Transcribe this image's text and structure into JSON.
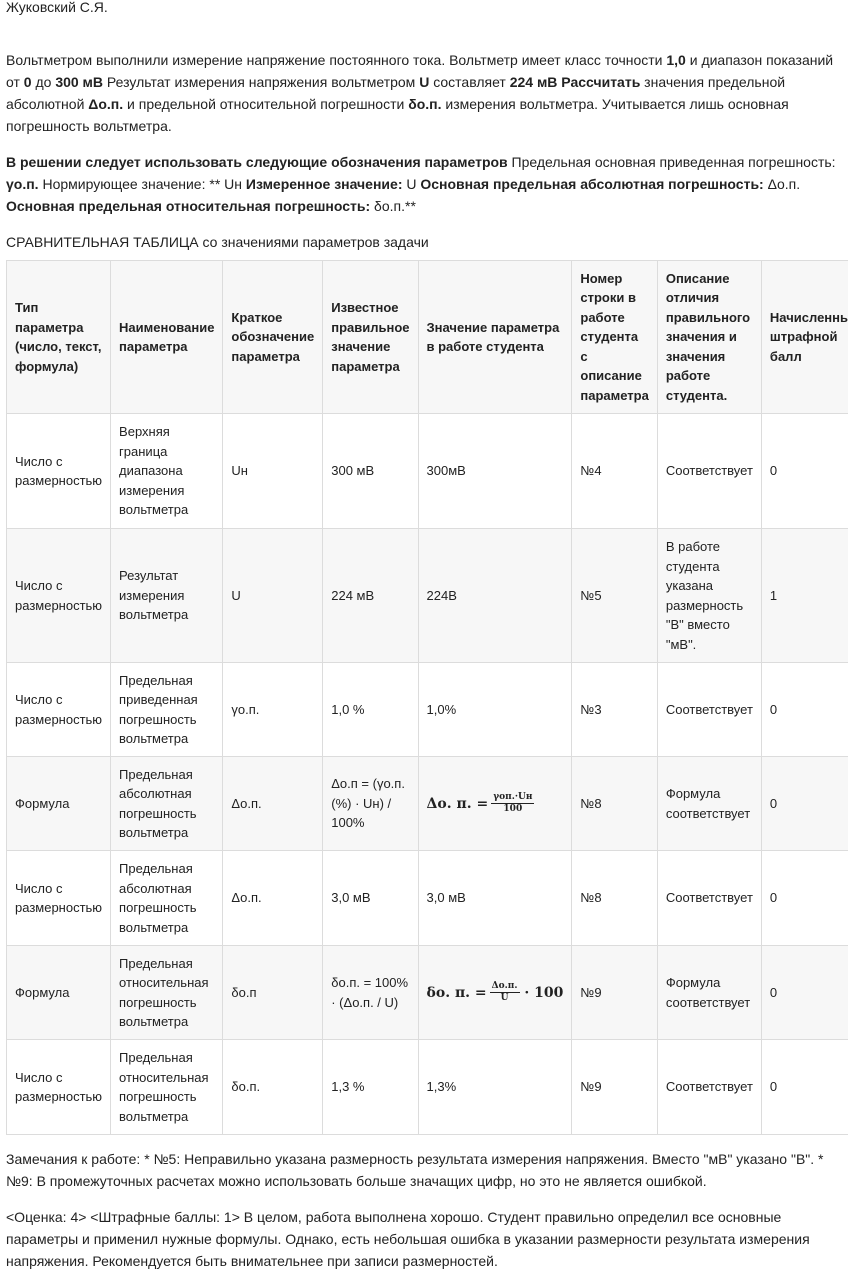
{
  "author": "Жуковский С.Я.",
  "task": [
    {
      "t": "Вольтметром выполнили измерение напряжение постоянного тока. Вольтметр имеет класс точности ",
      "b": false
    },
    {
      "t": "1,0",
      "b": true
    },
    {
      "t": " и диапазон показаний от ",
      "b": false
    },
    {
      "t": "0",
      "b": true
    },
    {
      "t": " до ",
      "b": false
    },
    {
      "t": "300 мВ",
      "b": true
    },
    {
      "t": " Результат измерения напряжения вольтметром ",
      "b": false
    },
    {
      "t": "U",
      "b": true
    },
    {
      "t": " составляет ",
      "b": false
    },
    {
      "t": "224 мВ Рассчитать",
      "b": true
    },
    {
      "t": " значения предельной абсолютной ",
      "b": false
    },
    {
      "t": "Δо.п.",
      "b": true
    },
    {
      "t": " и предельной относительной погрешности ",
      "b": false
    },
    {
      "t": "δо.п.",
      "b": true
    },
    {
      "t": " измерения вольтметра. Учитывается лишь основная погрешность вольтметра.",
      "b": false
    }
  ],
  "notation": [
    {
      "t": "В решении следует использовать следующие обозначения параметров",
      "b": true
    },
    {
      "t": " Предельная основная приведенная погрешность: ",
      "b": false
    },
    {
      "t": "γо.п.",
      "b": true
    },
    {
      "t": " Нормирующее значение: ** Uн ",
      "b": false
    },
    {
      "t": "Измеренное значение:",
      "b": true
    },
    {
      "t": " U ",
      "b": false
    },
    {
      "t": "Основная предельная абсолютная погрешность:",
      "b": true
    },
    {
      "t": " Δо.п. ",
      "b": false
    },
    {
      "t": "Основная предельная относительная погрешность:",
      "b": true
    },
    {
      "t": " δо.п.**",
      "b": false
    }
  ],
  "table_caption": "СРАВНИТЕЛЬНАЯ ТАБЛИЦА со значениями параметров задачи",
  "table": {
    "headers": [
      "Тип параметра (число, текст, формула)",
      "Наименование параметра",
      "Краткое обозначение параметра",
      "Известное правильное значение параметра",
      "Значение параметра в работе студента",
      "Номер строки в работе студента с описание параметра",
      "Описание отличия правильного значения и значения работе студента.",
      "Начисленный штрафной балл"
    ],
    "rows": [
      [
        "Число с размерностью",
        "Верхняя граница диапазона измерения вольтметра",
        "Uн",
        "300 мВ",
        "300мВ",
        "№4",
        "Соответствует",
        "0"
      ],
      [
        "Число с размерностью",
        "Результат измерения вольтметра",
        "U",
        "224 мВ",
        "224В",
        "№5",
        "В работе студента указана размерность \"В\" вместо \"мВ\".",
        "1"
      ],
      [
        "Число с размерностью",
        "Предельная приведенная погрешность вольтметра",
        "γо.п.",
        "1,0 %",
        "1,0%",
        "№3",
        "Соответствует",
        "0"
      ],
      [
        "Формула",
        "Предельная абсолютная погрешность вольтметра",
        "Δо.п.",
        "Δо.п = (γо.п. (%) · Uн) / 100%",
        "",
        "№8",
        "Формула соответствует",
        "0"
      ],
      [
        "Число с размерностью",
        "Предельная абсолютная погрешность вольтметра",
        "Δо.п.",
        "3,0 мВ",
        "3,0 мВ",
        "№8",
        "Соответствует",
        "0"
      ],
      [
        "Формула",
        "Предельная относительная погрешность вольтметра",
        "δо.п",
        "δо.п. = 100% · (Δо.п. / U)",
        "",
        "№9",
        "Формула соответствует",
        "0"
      ],
      [
        "Число с размерностью",
        "Предельная относительная погрешность вольтметра",
        "δо.п.",
        "1,3 %",
        "1,3%",
        "№9",
        "Соответствует",
        "0"
      ]
    ],
    "formula_abs": {
      "lhs": "Δо. п. =",
      "num": "γоп.·Uн",
      "den": "100"
    },
    "formula_rel": {
      "lhs": "δо. п. =",
      "num": "Δо.п.",
      "den": "U",
      "tail": "· 100"
    }
  },
  "notes": "Замечания к работе: * №5: Неправильно указана размерность результата измерения напряжения. Вместо \"мВ\" указано \"В\". * №9: В промежуточных расчетах можно использовать больше значащих цифр, но это не является ошибкой.",
  "grade": "<Оценка: 4> <Штрафные баллы: 1> В целом, работа выполнена хорошо. Студент правильно определил все основные параметры и применил нужные формулы. Однако, есть небольшая ошибка в указании размерности результата измерения напряжения. Рекомендуется быть внимательнее при записи размерностей."
}
